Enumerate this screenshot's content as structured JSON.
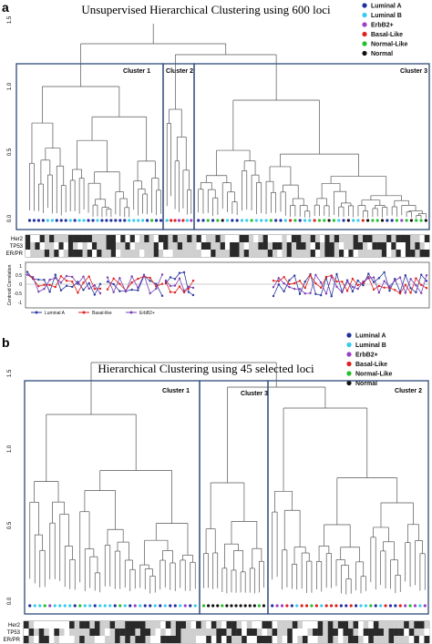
{
  "panel_a": {
    "label": "a",
    "title": "Unsupervised Hierarchical Clustering using 600 loci",
    "legend": [
      {
        "name": "Luminal A",
        "color": "#1f2f9e"
      },
      {
        "name": "Luminal B",
        "color": "#33ccee"
      },
      {
        "name": "ErbB2+",
        "color": "#9b3fc4"
      },
      {
        "name": "Basal-Like",
        "color": "#e0201c"
      },
      {
        "name": "Normal-Like",
        "color": "#22c02a"
      },
      {
        "name": "Normal",
        "color": "#111111"
      }
    ],
    "y_ticks": [
      "0.0",
      "0.5",
      "1.0",
      "1.5"
    ],
    "clusters": [
      "Cluster 1",
      "Cluster 2",
      "Cluster 3"
    ],
    "track_labels": [
      "Her2",
      "TP53",
      "ER/PR"
    ],
    "centroid_axis_label": "Centroid Correlation",
    "centroid_ticks": [
      "1",
      "0.5",
      "0",
      "-0.5",
      "-1"
    ],
    "centroid_legend": [
      {
        "name": "Luminal A",
        "color": "#2a3a9e",
        "icon": "diamond-icon"
      },
      {
        "name": "Basal-like",
        "color": "#e0201c",
        "icon": "square-icon"
      },
      {
        "name": "ErbB2+",
        "color": "#7a3fb4",
        "icon": "triangle-icon"
      }
    ]
  },
  "panel_b": {
    "label": "b",
    "title": "Hierarchical Clustering using 45 selected loci",
    "legend": [
      {
        "name": "Luminal A",
        "color": "#1f2f9e"
      },
      {
        "name": "Luminal B",
        "color": "#33ccee"
      },
      {
        "name": "ErbB2+",
        "color": "#9b3fc4"
      },
      {
        "name": "Basal-Like",
        "color": "#e0201c"
      },
      {
        "name": "Normal-Like",
        "color": "#22c02a"
      },
      {
        "name": "Normal",
        "color": "#111111"
      }
    ],
    "y_ticks": [
      "0.0",
      "0.5",
      "1.0",
      "1.5"
    ],
    "clusters": [
      "Cluster 1",
      "Cluster 3",
      "Cluster 2"
    ],
    "track_labels": [
      "Her2",
      "TP53",
      "ER/PR"
    ]
  }
}
